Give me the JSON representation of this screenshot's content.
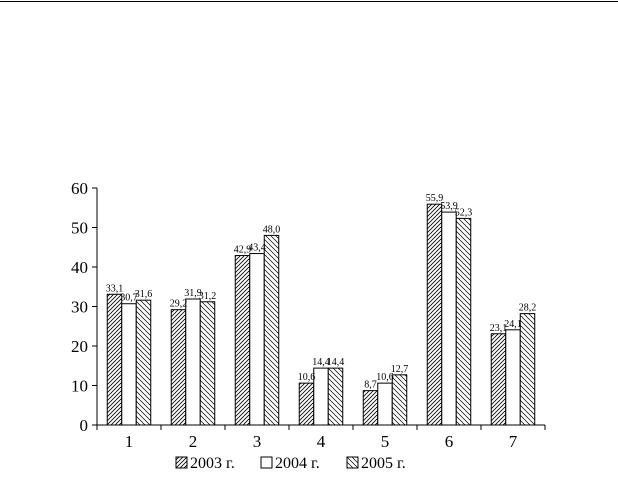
{
  "chart_data": {
    "type": "bar",
    "title": "",
    "xlabel": "",
    "ylabel": "",
    "categories": [
      "1",
      "2",
      "3",
      "4",
      "5",
      "6",
      "7"
    ],
    "ylim": [
      0,
      60
    ],
    "yticks": [
      "0",
      "10",
      "20",
      "30",
      "40",
      "50",
      "60"
    ],
    "grid": false,
    "legend_position": "bottom",
    "series": [
      {
        "name": "2003 г.",
        "pattern": "diagonal-hatch-right",
        "values": [
          33.1,
          29.2,
          42.9,
          10.6,
          8.7,
          55.9,
          23.1
        ],
        "labels": [
          "33,1",
          "29,2",
          "42,9",
          "10,6",
          "8,7",
          "55,9",
          "23,1"
        ]
      },
      {
        "name": "2004 г.",
        "pattern": "white",
        "values": [
          30.7,
          31.9,
          43.4,
          14.4,
          10.6,
          53.9,
          24.1
        ],
        "labels": [
          "30,7",
          "31,9",
          "43,4",
          "14,4",
          "10,6",
          "53,9",
          "24,1"
        ]
      },
      {
        "name": "2005 г.",
        "pattern": "diagonal-hatch-left",
        "values": [
          31.6,
          31.2,
          48.0,
          14.4,
          12.7,
          52.3,
          28.2
        ],
        "labels": [
          "31,6",
          "31,2",
          "48,0",
          "14,4",
          "12,7",
          "52,3",
          "28,2"
        ]
      }
    ],
    "colors": {
      "axis": "#000000",
      "bar_stroke": "#000000",
      "bar_fill": "#ffffff"
    }
  }
}
